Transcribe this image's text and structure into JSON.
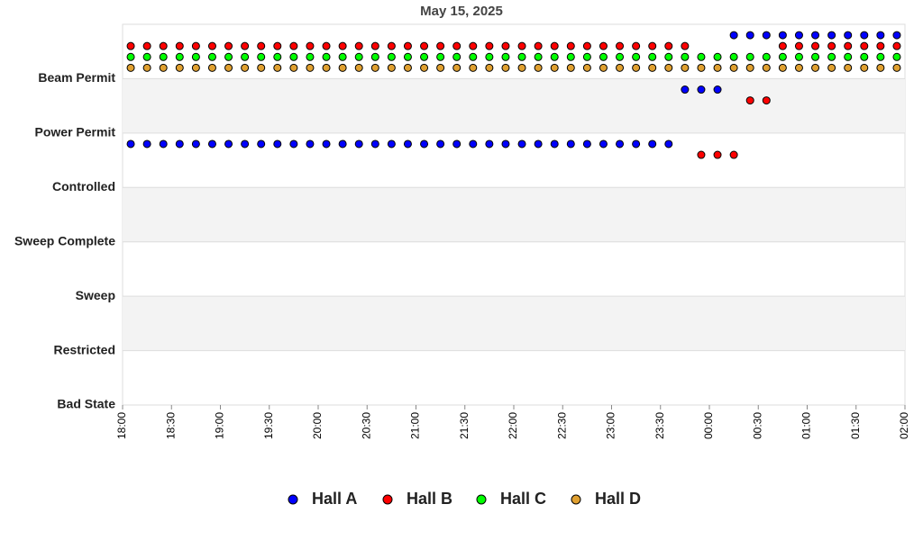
{
  "chart_data": {
    "type": "scatter",
    "title": "May 15, 2025",
    "x": [
      "18:05",
      "18:15",
      "18:25",
      "18:35",
      "18:45",
      "18:55",
      "19:05",
      "19:15",
      "19:25",
      "19:35",
      "19:45",
      "19:55",
      "20:05",
      "20:15",
      "20:25",
      "20:35",
      "20:45",
      "20:55",
      "21:05",
      "21:15",
      "21:25",
      "21:35",
      "21:45",
      "21:55",
      "22:05",
      "22:15",
      "22:25",
      "22:35",
      "22:45",
      "22:55",
      "23:05",
      "23:15",
      "23:25",
      "23:35",
      "23:45",
      "23:55",
      "00:05",
      "00:15",
      "00:25",
      "00:35",
      "00:45",
      "00:55",
      "01:05",
      "01:15",
      "01:25",
      "01:35",
      "01:45",
      "01:55"
    ],
    "series": [
      {
        "name": "Hall A",
        "color": "#0000ff",
        "values": [
          4.8,
          4.8,
          4.8,
          4.8,
          4.8,
          4.8,
          4.8,
          4.8,
          4.8,
          4.8,
          4.8,
          4.8,
          4.8,
          4.8,
          4.8,
          4.8,
          4.8,
          4.8,
          4.8,
          4.8,
          4.8,
          4.8,
          4.8,
          4.8,
          4.8,
          4.8,
          4.8,
          4.8,
          4.8,
          4.8,
          4.8,
          4.8,
          4.8,
          4.8,
          5.8,
          5.8,
          5.8,
          6.8,
          6.8,
          6.8,
          6.8,
          6.8,
          6.8,
          6.8,
          6.8,
          6.8,
          6.8,
          6.8
        ]
      },
      {
        "name": "Hall B",
        "color": "#ff0000",
        "values": [
          6.6,
          6.6,
          6.6,
          6.6,
          6.6,
          6.6,
          6.6,
          6.6,
          6.6,
          6.6,
          6.6,
          6.6,
          6.6,
          6.6,
          6.6,
          6.6,
          6.6,
          6.6,
          6.6,
          6.6,
          6.6,
          6.6,
          6.6,
          6.6,
          6.6,
          6.6,
          6.6,
          6.6,
          6.6,
          6.6,
          6.6,
          6.6,
          6.6,
          6.6,
          6.6,
          4.6,
          4.6,
          4.6,
          5.6,
          5.6,
          6.6,
          6.6,
          6.6,
          6.6,
          6.6,
          6.6,
          6.6,
          6.6
        ]
      },
      {
        "name": "Hall C",
        "color": "#00ff00",
        "values": [
          6.4,
          6.4,
          6.4,
          6.4,
          6.4,
          6.4,
          6.4,
          6.4,
          6.4,
          6.4,
          6.4,
          6.4,
          6.4,
          6.4,
          6.4,
          6.4,
          6.4,
          6.4,
          6.4,
          6.4,
          6.4,
          6.4,
          6.4,
          6.4,
          6.4,
          6.4,
          6.4,
          6.4,
          6.4,
          6.4,
          6.4,
          6.4,
          6.4,
          6.4,
          6.4,
          6.4,
          6.4,
          6.4,
          6.4,
          6.4,
          6.4,
          6.4,
          6.4,
          6.4,
          6.4,
          6.4,
          6.4,
          6.4
        ]
      },
      {
        "name": "Hall D",
        "color": "#e0a030",
        "values": [
          6.2,
          6.2,
          6.2,
          6.2,
          6.2,
          6.2,
          6.2,
          6.2,
          6.2,
          6.2,
          6.2,
          6.2,
          6.2,
          6.2,
          6.2,
          6.2,
          6.2,
          6.2,
          6.2,
          6.2,
          6.2,
          6.2,
          6.2,
          6.2,
          6.2,
          6.2,
          6.2,
          6.2,
          6.2,
          6.2,
          6.2,
          6.2,
          6.2,
          6.2,
          6.2,
          6.2,
          6.2,
          6.2,
          6.2,
          6.2,
          6.2,
          6.2,
          6.2,
          6.2,
          6.2,
          6.2,
          6.2,
          6.2
        ]
      }
    ],
    "xlim": [
      "18:00",
      "02:00"
    ],
    "xticks": [
      "18:00",
      "18:30",
      "19:00",
      "19:30",
      "20:00",
      "20:30",
      "21:00",
      "21:30",
      "22:00",
      "22:30",
      "23:00",
      "23:30",
      "00:00",
      "00:30",
      "01:00",
      "01:30",
      "02:00"
    ],
    "ylim": [
      0,
      7
    ],
    "yticks": [
      {
        "value": 0,
        "label": "Bad State"
      },
      {
        "value": 1,
        "label": "Restricted"
      },
      {
        "value": 2,
        "label": "Sweep"
      },
      {
        "value": 3,
        "label": "Sweep Complete"
      },
      {
        "value": 4,
        "label": "Controlled"
      },
      {
        "value": 5,
        "label": "Power Permit"
      },
      {
        "value": 6,
        "label": "Beam Permit"
      }
    ],
    "grid": true,
    "legend": "bottom"
  }
}
